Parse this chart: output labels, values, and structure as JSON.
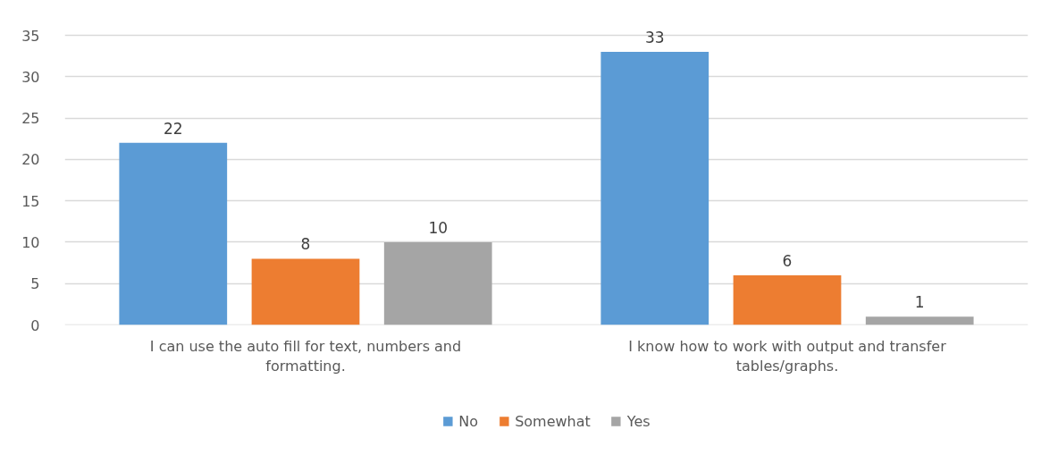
{
  "chart_data": {
    "type": "bar",
    "categories": [
      "I can use the auto fill for text, numbers and formatting.",
      "I know how to work with output and transfer tables/graphs."
    ],
    "series": [
      {
        "name": "No",
        "color": "#5b9bd5",
        "values": [
          22,
          33
        ]
      },
      {
        "name": "Somewhat",
        "color": "#ed7d31",
        "values": [
          8,
          6
        ]
      },
      {
        "name": "Yes",
        "color": "#a5a5a5",
        "values": [
          10,
          1
        ]
      }
    ],
    "ylim": [
      0,
      35
    ],
    "yticks": [
      0,
      5,
      10,
      15,
      20,
      25,
      30,
      35
    ],
    "grid": "y",
    "legend": "bottom",
    "data_labels": true
  }
}
